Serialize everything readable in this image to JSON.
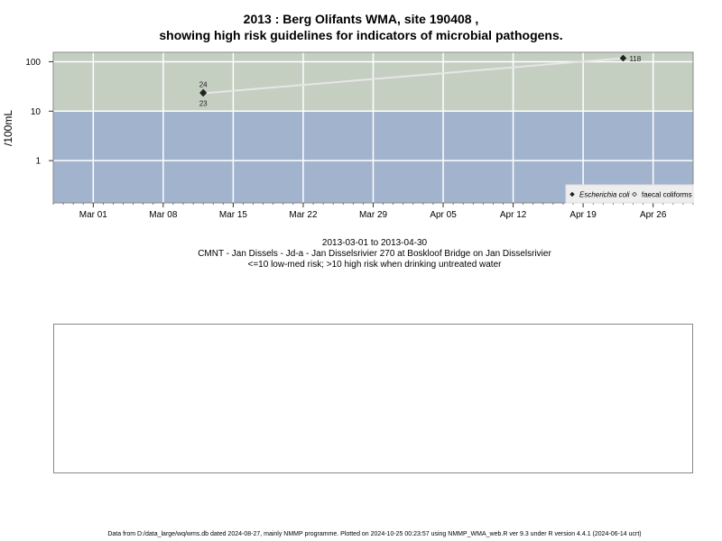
{
  "chart_data": {
    "type": "scatter",
    "title": "2013 : Berg Olifants WMA, site 190408 ,",
    "subtitle": "showing high risk guidelines for indicators of microbial pathogens.",
    "xlabel": "",
    "ylabel": "/100mL",
    "log_y": true,
    "grid": true,
    "xlim": [
      "2013-02-25",
      "2013-04-30"
    ],
    "ylim": [
      0.14,
      155
    ],
    "x_ticks": [
      {
        "date": "2013-03-01",
        "label": "Mar 01"
      },
      {
        "date": "2013-03-08",
        "label": "Mar 08"
      },
      {
        "date": "2013-03-15",
        "label": "Mar 15"
      },
      {
        "date": "2013-03-22",
        "label": "Mar 22"
      },
      {
        "date": "2013-03-29",
        "label": "Mar 29"
      },
      {
        "date": "2013-04-05",
        "label": "Apr 05"
      },
      {
        "date": "2013-04-12",
        "label": "Apr 12"
      },
      {
        "date": "2013-04-19",
        "label": "Apr 19"
      },
      {
        "date": "2013-04-26",
        "label": "Apr 26"
      }
    ],
    "y_ticks": [
      {
        "value": 1,
        "label": "1"
      },
      {
        "value": 10,
        "label": "10"
      },
      {
        "value": 100,
        "label": "100"
      }
    ],
    "guideline": {
      "value": 10,
      "low_color": "#a2b3cd",
      "high_color": "#c4cfc2"
    },
    "series": [
      {
        "name": "Escherichia coli",
        "marker": "filled-diamond",
        "color": "#222222",
        "points": [
          {
            "date": "2013-03-12",
            "value": 23,
            "label": "23"
          },
          {
            "date": "2013-04-23",
            "value": 118,
            "label": "118"
          }
        ]
      },
      {
        "name": "faecal coliforms",
        "marker": "open-diamond",
        "color": "#222222",
        "points": [
          {
            "date": "2013-03-12",
            "value": 24,
            "label": "24"
          }
        ]
      }
    ],
    "connector_color": "#e6e6e6",
    "legend_position": "bottom-right"
  },
  "captions": {
    "date_range": "2013-03-01 to 2013-04-30",
    "site": "CMNT - Jan Dissels - Jd-a - Jan Disselsrivier 270 at Boskloof Bridge on Jan Disselsrivier",
    "risk": "<=10 low-med risk; >10 high risk when drinking untreated water"
  },
  "footer": "Data from D:/data_large/wq/wms.db dated 2024-08-27, mainly NMMP programme. Plotted on 2024-10-25 00:23:57 using NMMP_WMA_web.R ver 9.3 under R version 4.4.1 (2024-06-14 ucrt)"
}
